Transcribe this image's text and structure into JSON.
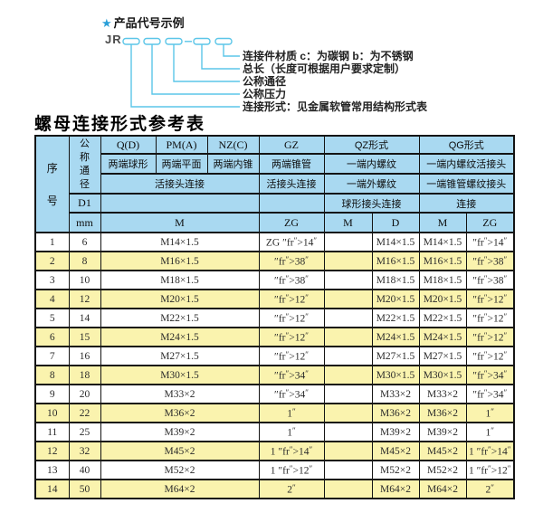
{
  "colors": {
    "accent_cyan": "#5bc6e8",
    "star_blue": "#2a9fd8",
    "header_blue": "#a9d9f1",
    "row_yellow": "#faf3ae",
    "border_black": "#141414"
  },
  "diagram": {
    "star": "★",
    "title": "产品代号示例",
    "code_prefix": "JR",
    "labels": [
      "连接件材质  c：为碳钢  b：为不锈钢",
      "总长（长度可根据用户要求定制）",
      "公称通径",
      "公称压力",
      "连接形式：见金属软管常用结构形式表"
    ]
  },
  "table": {
    "title": "螺母连接形式参考表",
    "header": {
      "seq": "序号",
      "dn": "公称通径",
      "d1": "D1",
      "mm": "mm",
      "col_q": "Q(D)",
      "col_pm": "PM(A)",
      "col_nz": "NZ(C)",
      "col_gz": "GZ",
      "col_qz": "QZ形式",
      "col_qg": "QG形式",
      "q_desc": "两端球形",
      "pm_desc": "两端平面",
      "nz_desc": "两端内锥",
      "gz_desc": "两端锥管",
      "qz_desc1": "一端内螺纹",
      "qg_desc1": "一端内螺纹活接头",
      "union_desc": "活接头连接",
      "gz_union_desc": "活接头连接",
      "qz_desc2": "一端外螺纹",
      "qg_desc2": "一端锥管螺纹接头",
      "qz_desc3": "球形接头连接",
      "qg_desc3": "连接",
      "m_label": "M",
      "zg_label": "ZG",
      "qz_m_label": "M",
      "qz_d_label": "D",
      "qg_m_label": "M",
      "qg_zg_label": "ZG"
    },
    "rows": [
      {
        "seq": "1",
        "dn": "6",
        "m": "M14×1.5",
        "gz_zg": "ZG 1/4\"",
        "qz_m": "",
        "qz_d": "M14×1.5",
        "qg_m": "M14×1.5",
        "qg_zg": "1/4\""
      },
      {
        "seq": "2",
        "dn": "8",
        "m": "M16×1.5",
        "gz_zg": "3/8\"",
        "qz_m": "",
        "qz_d": "M16×1.5",
        "qg_m": "M16×1.5",
        "qg_zg": "3/8\""
      },
      {
        "seq": "3",
        "dn": "10",
        "m": "M18×1.5",
        "gz_zg": "3/8\"",
        "qz_m": "",
        "qz_d": "M18×1.5",
        "qg_m": "M18×1.5",
        "qg_zg": "3/8\""
      },
      {
        "seq": "4",
        "dn": "12",
        "m": "M20×1.5",
        "gz_zg": "1/2\"",
        "qz_m": "",
        "qz_d": "M20×1.5",
        "qg_m": "M20×1.5",
        "qg_zg": "1/2\""
      },
      {
        "seq": "5",
        "dn": "14",
        "m": "M22×1.5",
        "gz_zg": "1/2\"",
        "qz_m": "",
        "qz_d": "M22×1.5",
        "qg_m": "M22×1.5",
        "qg_zg": "1/2\""
      },
      {
        "seq": "6",
        "dn": "15",
        "m": "M24×1.5",
        "gz_zg": "1/2\"",
        "qz_m": "",
        "qz_d": "M24×1.5",
        "qg_m": "M24×1.5",
        "qg_zg": "1/2\""
      },
      {
        "seq": "7",
        "dn": "16",
        "m": "M27×1.5",
        "gz_zg": "1/2\"",
        "qz_m": "",
        "qz_d": "M27×1.5",
        "qg_m": "M27×1.5",
        "qg_zg": "1/2\""
      },
      {
        "seq": "8",
        "dn": "18",
        "m": "M30×1.5",
        "gz_zg": "3/4\"",
        "qz_m": "",
        "qz_d": "M30×1.5",
        "qg_m": "M30×1.5",
        "qg_zg": "3/4\""
      },
      {
        "seq": "9",
        "dn": "20",
        "m": "M33×2",
        "gz_zg": "3/4\"",
        "qz_m": "",
        "qz_d": "M33×2",
        "qg_m": "M33×2",
        "qg_zg": "3/4\""
      },
      {
        "seq": "10",
        "dn": "22",
        "m": "M36×2",
        "gz_zg": "1\"",
        "qz_m": "",
        "qz_d": "M36×2",
        "qg_m": "M36×2",
        "qg_zg": "1\""
      },
      {
        "seq": "11",
        "dn": "25",
        "m": "M39×2",
        "gz_zg": "1\"",
        "qz_m": "",
        "qz_d": "M39×2",
        "qg_m": "M39×2",
        "qg_zg": "1\""
      },
      {
        "seq": "12",
        "dn": "32",
        "m": "M45×2",
        "gz_zg": "1 1/4\"",
        "qz_m": "",
        "qz_d": "M45×2",
        "qg_m": "M45×2",
        "qg_zg": "1 1/4\""
      },
      {
        "seq": "13",
        "dn": "40",
        "m": "M52×2",
        "gz_zg": "1 1/2\"",
        "qz_m": "",
        "qz_d": "M52×2",
        "qg_m": "M52×2",
        "qg_zg": "1 1/2\""
      },
      {
        "seq": "14",
        "dn": "50",
        "m": "M64×2",
        "gz_zg": "2\"",
        "qz_m": "",
        "qz_d": "M64×2",
        "qg_m": "M64×2",
        "qg_zg": "2\""
      }
    ]
  }
}
